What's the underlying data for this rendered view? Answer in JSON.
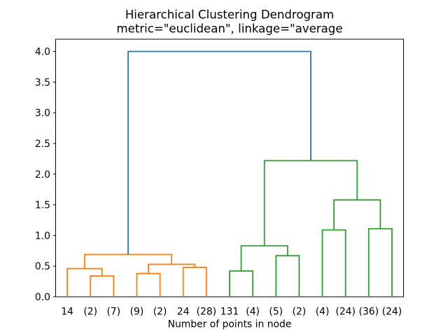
{
  "chart_data": {
    "type": "dendrogram",
    "title": "Hierarchical Clustering Dendrogram",
    "subtitle": "metric=\"euclidean\", linkage=\"average",
    "xlabel": "Number of points in node",
    "ylabel": "",
    "ylim": [
      0,
      4.2
    ],
    "yticks": [
      0.0,
      0.5,
      1.0,
      1.5,
      2.0,
      2.5,
      3.0,
      3.5,
      4.0
    ],
    "ytick_labels": [
      "0.0",
      "0.5",
      "1.0",
      "1.5",
      "2.0",
      "2.5",
      "3.0",
      "3.5",
      "4.0"
    ],
    "grid": false,
    "leaves": [
      "14",
      "(2)",
      "(7)",
      "(9)",
      "(2)",
      "24",
      "(28)",
      "131",
      "(4)",
      "(5)",
      "(2)",
      "(4)",
      "(24)",
      "(36)",
      "(24)"
    ],
    "leaf_x_data": [
      5,
      15,
      25,
      35,
      45,
      55,
      65,
      75,
      85,
      95,
      105,
      115,
      125,
      135,
      145
    ],
    "x_data_range": [
      0,
      150
    ],
    "colors": {
      "left_cluster": "#ff7f0e",
      "right_cluster": "#2ca02c",
      "root_link": "#1f77b4",
      "text": "#000000",
      "spine": "#000000"
    },
    "links": [
      {
        "id": "n1",
        "a": "L1",
        "b": "L2",
        "height": 0.34,
        "color": "#ff7f0e"
      },
      {
        "id": "n2",
        "a": "L0",
        "b": "n1",
        "height": 0.46,
        "color": "#ff7f0e"
      },
      {
        "id": "n3",
        "a": "L3",
        "b": "L4",
        "height": 0.38,
        "color": "#ff7f0e"
      },
      {
        "id": "n4",
        "a": "L5",
        "b": "L6",
        "height": 0.48,
        "color": "#ff7f0e"
      },
      {
        "id": "n5",
        "a": "n3",
        "b": "n4",
        "height": 0.53,
        "color": "#ff7f0e"
      },
      {
        "id": "n6",
        "a": "n2",
        "b": "n5",
        "height": 0.69,
        "color": "#ff7f0e"
      },
      {
        "id": "n7",
        "a": "L7",
        "b": "L8",
        "height": 0.42,
        "color": "#2ca02c"
      },
      {
        "id": "n8",
        "a": "L9",
        "b": "L10",
        "height": 0.67,
        "color": "#2ca02c"
      },
      {
        "id": "n9",
        "a": "n7",
        "b": "n8",
        "height": 0.83,
        "color": "#2ca02c"
      },
      {
        "id": "n10",
        "a": "L11",
        "b": "L12",
        "height": 1.09,
        "color": "#2ca02c"
      },
      {
        "id": "n11",
        "a": "L13",
        "b": "L14",
        "height": 1.11,
        "color": "#2ca02c"
      },
      {
        "id": "n12",
        "a": "n10",
        "b": "n11",
        "height": 1.58,
        "color": "#2ca02c"
      },
      {
        "id": "n13",
        "a": "n9",
        "b": "n12",
        "height": 2.22,
        "color": "#2ca02c"
      },
      {
        "id": "n14",
        "a": "n6",
        "b": "n13",
        "height": 4.0,
        "color": "#1f77b4"
      }
    ]
  }
}
